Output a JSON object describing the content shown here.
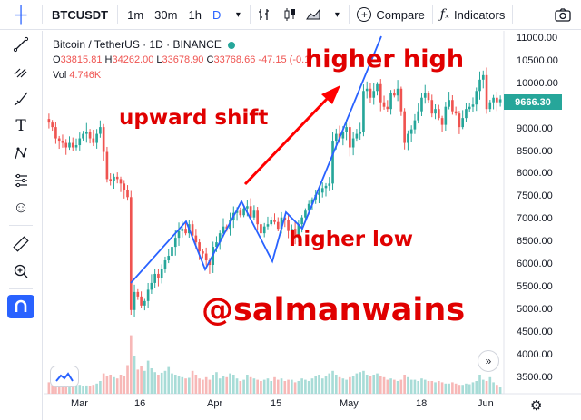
{
  "toolbar": {
    "symbol": "BTCUSDT",
    "intervals": [
      "1m",
      "30m",
      "1h",
      "D"
    ],
    "active_interval": "D",
    "compare_label": "Compare",
    "indicators_label": "Indicators"
  },
  "legend": {
    "title": "Bitcoin / TetherUS · 1D · BINANCE",
    "ohlc": {
      "o_label": "O",
      "o": "33815.81",
      "h_label": "H",
      "h": "34262.00",
      "l_label": "L",
      "l": "33678.90",
      "c_label": "C",
      "c": "33768.66",
      "change": "-47.15 (-0.1"
    },
    "vol_label": "Vol",
    "vol_value": "4.746K"
  },
  "annotations": {
    "higher_high": "higher high",
    "upward_shift": "upward shift",
    "higher_low": "higher low",
    "watermark": "@salmanwains"
  },
  "last_price": "9666.30",
  "colors": {
    "up": "#26a69a",
    "down": "#ef5350",
    "accent": "#2962ff",
    "annotation": "#e00000"
  },
  "chart_data": {
    "type": "candlestick",
    "y_axis": [
      "11000.00",
      "10500.00",
      "10000.00",
      "9500.00",
      "9000.00",
      "8500.00",
      "8000.00",
      "7500.00",
      "7000.00",
      "6500.00",
      "6000.00",
      "5500.00",
      "5000.00",
      "4500.00",
      "4000.00",
      "3500.00"
    ],
    "x_axis": [
      "Mar",
      "16",
      "Apr",
      "15",
      "May",
      "18",
      "Jun"
    ],
    "ylim": [
      3200,
      11100
    ],
    "grid": false,
    "closes": [
      9150,
      9050,
      8800,
      8750,
      8700,
      8600,
      8700,
      8600,
      8650,
      8800,
      8900,
      8950,
      8800,
      8700,
      8900,
      9050,
      8500,
      7900,
      7850,
      7950,
      7900,
      7800,
      7650,
      7500,
      5000,
      5400,
      5300,
      5100,
      5200,
      5450,
      5600,
      5800,
      5700,
      5900,
      6100,
      6200,
      6400,
      6600,
      6750,
      6800,
      6700,
      6900,
      6650,
      6500,
      6300,
      6250,
      6100,
      6000,
      6400,
      6500,
      6700,
      6850,
      6800,
      7000,
      7150,
      7200,
      7100,
      7250,
      7300,
      7050,
      7200,
      6900,
      6700,
      6850,
      6900,
      7000,
      6950,
      6800,
      7050,
      7000,
      6750,
      6800,
      6600,
      6900,
      7050,
      7200,
      7350,
      7450,
      7550,
      7600,
      7700,
      7750,
      7800,
      8750,
      8900,
      8800,
      8950,
      9050,
      8600,
      8800,
      8900,
      8950,
      9850,
      9900,
      9700,
      9850,
      10000,
      9600,
      9500,
      9450,
      9800,
      9750,
      9900,
      9400,
      8700,
      8900,
      9000,
      9200,
      9400,
      9700,
      9800,
      9650,
      9350,
      9450,
      9250,
      9100,
      9500,
      9650,
      9400,
      9350,
      9050,
      9250,
      9450,
      9500,
      9550,
      9850,
      10100,
      10200,
      9450,
      9600,
      9700,
      9600,
      9666
    ],
    "volumes": [
      0.18,
      0.16,
      0.15,
      0.2,
      0.14,
      0.16,
      0.14,
      0.12,
      0.15,
      0.14,
      0.12,
      0.13,
      0.12,
      0.14,
      0.16,
      0.2,
      0.32,
      0.28,
      0.3,
      0.26,
      0.24,
      0.3,
      0.28,
      0.45,
      0.92,
      0.6,
      0.38,
      0.44,
      0.36,
      0.52,
      0.4,
      0.34,
      0.3,
      0.33,
      0.36,
      0.42,
      0.32,
      0.3,
      0.28,
      0.26,
      0.24,
      0.25,
      0.36,
      0.3,
      0.24,
      0.22,
      0.26,
      0.22,
      0.3,
      0.34,
      0.24,
      0.28,
      0.26,
      0.32,
      0.3,
      0.24,
      0.2,
      0.22,
      0.3,
      0.26,
      0.24,
      0.22,
      0.2,
      0.22,
      0.24,
      0.2,
      0.26,
      0.22,
      0.24,
      0.2,
      0.22,
      0.22,
      0.18,
      0.2,
      0.24,
      0.22,
      0.2,
      0.24,
      0.28,
      0.3,
      0.24,
      0.28,
      0.32,
      0.36,
      0.3,
      0.26,
      0.24,
      0.22,
      0.26,
      0.28,
      0.32,
      0.34,
      0.36,
      0.3,
      0.28,
      0.3,
      0.32,
      0.28,
      0.26,
      0.22,
      0.24,
      0.22,
      0.2,
      0.22,
      0.3,
      0.26,
      0.22,
      0.22,
      0.2,
      0.24,
      0.22,
      0.2,
      0.2,
      0.18,
      0.2,
      0.18,
      0.16,
      0.16,
      0.18,
      0.16,
      0.14,
      0.14,
      0.16,
      0.15,
      0.18,
      0.2,
      0.3,
      0.22,
      0.2,
      0.26,
      0.18,
      0.14,
      0.1
    ]
  },
  "icons": [
    "crosshair-icon",
    "trend-line-icon",
    "fib-icon",
    "brush-icon",
    "text-icon",
    "pattern-icon",
    "measure-list-icon",
    "emoji-icon",
    "ruler-icon",
    "zoom-icon",
    "magnet-icon",
    "camera-icon",
    "settings-icon"
  ]
}
